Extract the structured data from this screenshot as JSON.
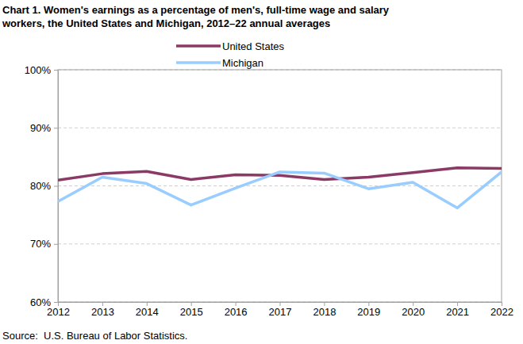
{
  "chart_data": {
    "type": "line",
    "title": [
      "Chart 1. Women's earnings as a percentage of men's, full-time wage and salary",
      "workers, the United States and Michigan, 2012–22 annual averages"
    ],
    "source": "Source:  U.S. Bureau of Labor Statistics.",
    "x": [
      2012,
      2013,
      2014,
      2015,
      2016,
      2017,
      2018,
      2019,
      2020,
      2021,
      2022
    ],
    "xlim": [
      2012,
      2022
    ],
    "xticks": [
      2012,
      2013,
      2014,
      2015,
      2016,
      2017,
      2018,
      2019,
      2020,
      2021,
      2022
    ],
    "ylim": [
      60,
      100
    ],
    "yticks": [
      {
        "value": 60,
        "label": "60%"
      },
      {
        "value": 70,
        "label": "70%"
      },
      {
        "value": 80,
        "label": "80%"
      },
      {
        "value": 90,
        "label": "90%"
      },
      {
        "value": 100,
        "label": "100%"
      }
    ],
    "grid": true,
    "legend": "top",
    "series": [
      {
        "name": "United States",
        "color": "#8b3a66",
        "values": [
          81.0,
          82.1,
          82.5,
          81.1,
          81.9,
          81.8,
          81.1,
          81.5,
          82.3,
          83.1,
          83.0
        ]
      },
      {
        "name": "Michigan",
        "color": "#99ccff",
        "values": [
          77.3,
          81.5,
          80.4,
          76.7,
          79.6,
          82.4,
          82.2,
          79.5,
          80.6,
          76.2,
          82.4
        ]
      }
    ]
  }
}
